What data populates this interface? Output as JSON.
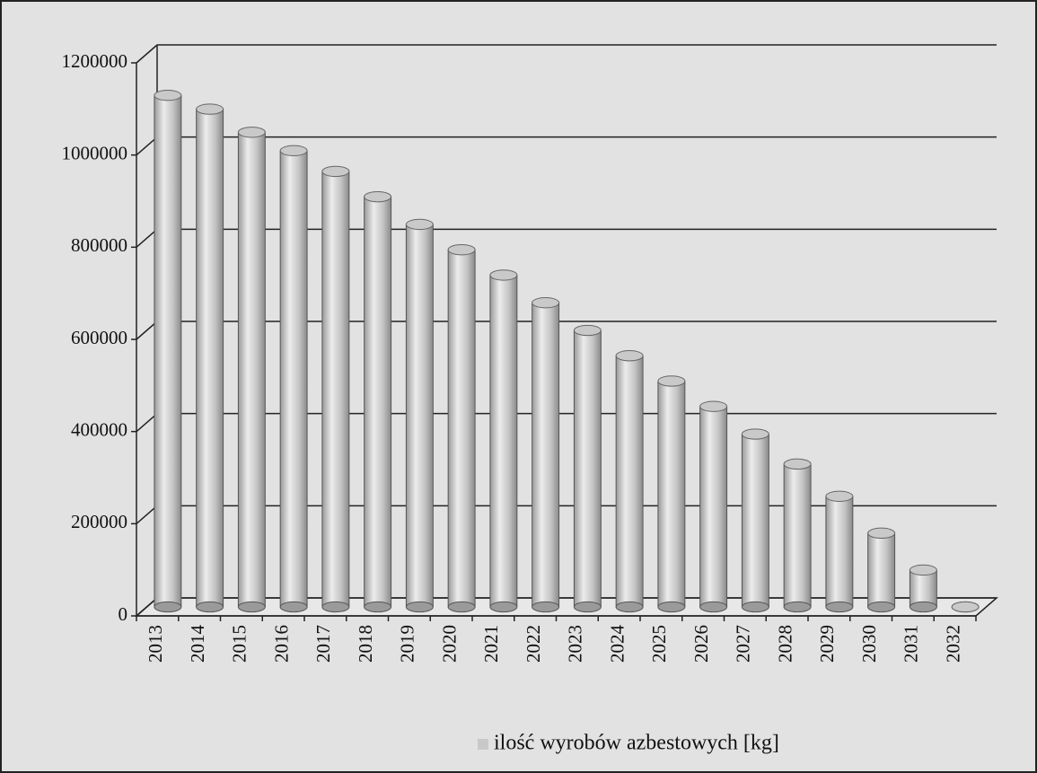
{
  "chart_data": {
    "type": "bar",
    "categories": [
      "2013",
      "2014",
      "2015",
      "2016",
      "2017",
      "2018",
      "2019",
      "2020",
      "2021",
      "2022",
      "2023",
      "2024",
      "2025",
      "2026",
      "2027",
      "2028",
      "2029",
      "2030",
      "2031",
      "2032"
    ],
    "series": [
      {
        "name": "ilość wyrobów azbestowych [kg]",
        "color": "#c9c9c9",
        "values": [
          1110000,
          1080000,
          1030000,
          990000,
          945000,
          890000,
          830000,
          775000,
          720000,
          660000,
          600000,
          545000,
          490000,
          435000,
          375000,
          310000,
          240000,
          160000,
          80000,
          0
        ]
      }
    ],
    "ylim": [
      0,
      1200000
    ],
    "yticks": [
      0,
      200000,
      400000,
      600000,
      800000,
      1000000,
      1200000
    ],
    "grid": true,
    "legend": "bottom"
  }
}
